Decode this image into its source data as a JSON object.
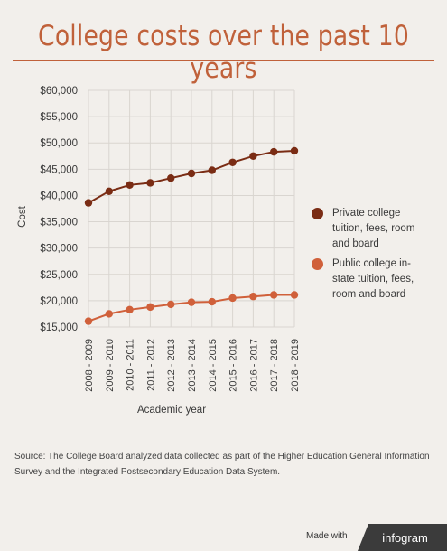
{
  "header": {
    "title": "College costs  over the past 10 years"
  },
  "chart_data": {
    "type": "line",
    "title": "College costs  over the past 10 years",
    "xlabel": "Academic year",
    "ylabel": "Cost",
    "categories": [
      "2008 - 2009",
      "2009 - 2010",
      "2010 - 2011",
      "2011 - 2012",
      "2012 - 2013",
      "2013 - 2014",
      "2014 - 2015",
      "2015 - 2016",
      "2016 - 2017",
      "2017 - 2018",
      "2018 - 2019"
    ],
    "ylim": [
      15000,
      60000
    ],
    "yticks": [
      "$15,000",
      "$20,000",
      "$25,000",
      "$30,000",
      "$35,000",
      "$40,000",
      "$45,000",
      "$50,000",
      "$55,000",
      "$60,000"
    ],
    "grid": true,
    "legend_position": "right",
    "series": [
      {
        "name": "Private college tuition, fees, room and board",
        "color": "#7a2c14",
        "values": [
          38600,
          40800,
          42000,
          42400,
          43300,
          44200,
          44800,
          46300,
          47500,
          48300,
          48500
        ]
      },
      {
        "name": "Public college in-state tuition, fees, room and board",
        "color": "#d0603a",
        "values": [
          16100,
          17500,
          18300,
          18800,
          19300,
          19700,
          19800,
          20500,
          20800,
          21100,
          21100
        ]
      }
    ]
  },
  "legend": {
    "items": [
      {
        "label": "Private college tuition, fees, room and board",
        "color": "#7a2c14"
      },
      {
        "label": "Public college in-state tuition, fees, room and board",
        "color": "#d0603a"
      }
    ]
  },
  "footer": {
    "source": "Source: The College Board analyzed data collected as part of the Higher Education General Information Survey and the Integrated Postsecondary Education Data System.",
    "made_with": "Made with",
    "brand": "infogram"
  }
}
